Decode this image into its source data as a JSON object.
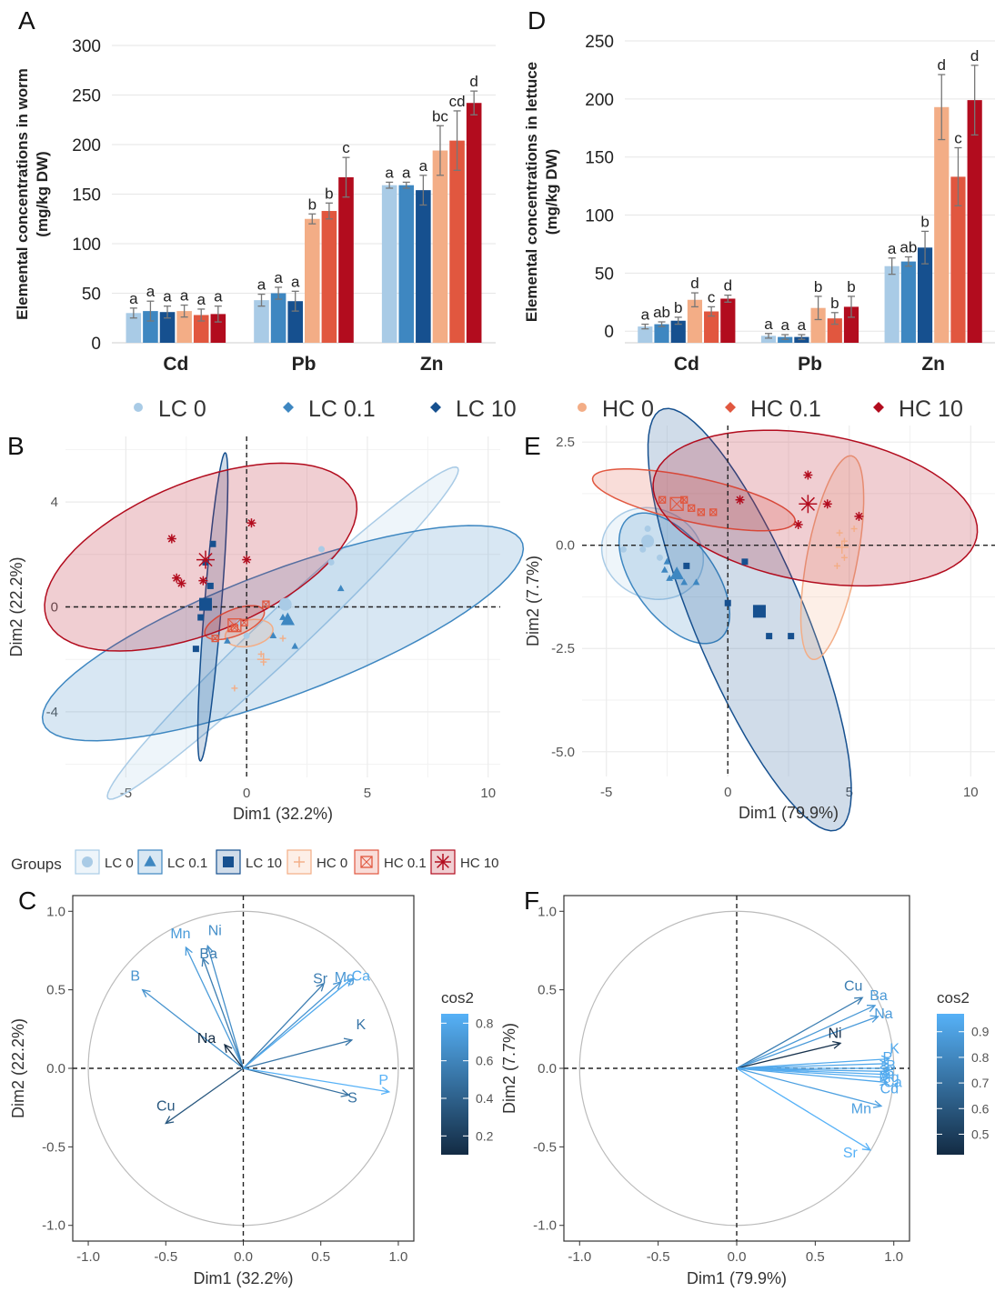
{
  "colors": {
    "LC 0": "#a9cbe6",
    "LC 0.1": "#3e87c1",
    "LC 10": "#16508f",
    "HC 0": "#f3ad86",
    "HC 0.1": "#e1573f",
    "HC 10": "#b20c1e",
    "grid": "#ebebeb",
    "circle": "#bbbbbb"
  },
  "panels": {
    "A": {
      "letter": "A"
    },
    "B": {
      "letter": "B"
    },
    "C": {
      "letter": "C"
    },
    "D": {
      "letter": "D"
    },
    "E": {
      "letter": "E"
    },
    "F": {
      "letter": "F"
    }
  },
  "top_legend": [
    {
      "label": "LC 0",
      "marker": "circle"
    },
    {
      "label": "LC 0.1",
      "marker": "diamond"
    },
    {
      "label": "LC 10",
      "marker": "diamond"
    },
    {
      "label": "HC 0",
      "marker": "circle"
    },
    {
      "label": "HC 0.1",
      "marker": "diamond"
    },
    {
      "label": "HC 10",
      "marker": "diamond"
    }
  ],
  "groups_legend": {
    "title": "Groups",
    "items": [
      {
        "label": "LC 0",
        "marker": "circle"
      },
      {
        "label": "LC 0.1",
        "marker": "triangle"
      },
      {
        "label": "LC 10",
        "marker": "square"
      },
      {
        "label": "HC 0",
        "marker": "plus"
      },
      {
        "label": "HC 0.1",
        "marker": "boxx"
      },
      {
        "label": "HC 10",
        "marker": "star"
      }
    ]
  },
  "chart_data": [
    {
      "panel": "A",
      "type": "bar",
      "ylabel_line1": "Elemental concentrations in worm",
      "ylabel_line2": "(mg/kg DW)",
      "ylim": [
        0,
        300
      ],
      "yticks": [
        0,
        50,
        100,
        150,
        200,
        250,
        300
      ],
      "categories": [
        "Cd",
        "Pb",
        "Zn"
      ],
      "groups": [
        "LC 0",
        "LC 0.1",
        "LC 10",
        "HC 0",
        "HC 0.1",
        "HC 10"
      ],
      "values": [
        [
          30,
          32,
          31,
          32,
          28,
          29
        ],
        [
          43,
          50,
          42,
          125,
          133,
          167
        ],
        [
          159,
          159,
          154,
          194,
          204,
          242
        ]
      ],
      "errors": [
        [
          5,
          10,
          6,
          6,
          6,
          8
        ],
        [
          6,
          6,
          10,
          5,
          8,
          20
        ],
        [
          3,
          3,
          15,
          25,
          30,
          12
        ]
      ],
      "letters": [
        [
          "a",
          "a",
          "a",
          "a",
          "a",
          "a"
        ],
        [
          "a",
          "a",
          "a",
          "b",
          "b",
          "c"
        ],
        [
          "a",
          "a",
          "a",
          "bc",
          "cd",
          "d"
        ]
      ]
    },
    {
      "panel": "D",
      "type": "bar",
      "ylabel_line1": "Elemental concentrations in lettuce",
      "ylabel_line2": "(mg/kg DW)",
      "ylim": [
        -10,
        250
      ],
      "yticks": [
        0,
        50,
        100,
        150,
        200,
        250
      ],
      "categories": [
        "Cd",
        "Pb",
        "Zn"
      ],
      "groups": [
        "LC 0",
        "LC 0.1",
        "LC 10",
        "HC 0",
        "HC 0.1",
        "HC 10"
      ],
      "values": [
        [
          4,
          6,
          9,
          27,
          17,
          28
        ],
        [
          -4,
          -5,
          -5,
          20,
          11,
          21
        ],
        [
          56,
          60,
          72,
          193,
          133,
          199
        ]
      ],
      "errors": [
        [
          2,
          2,
          3,
          6,
          4,
          3
        ],
        [
          2,
          2,
          2,
          10,
          5,
          9
        ],
        [
          7,
          4,
          14,
          28,
          25,
          30
        ]
      ],
      "letters": [
        [
          "a",
          "ab",
          "b",
          "d",
          "c",
          "d"
        ],
        [
          "a",
          "a",
          "a",
          "b",
          "b",
          "b"
        ],
        [
          "a",
          "ab",
          "b",
          "d",
          "c",
          "d"
        ]
      ]
    },
    {
      "panel": "B",
      "type": "scatter",
      "xlabel": "Dim1 (32.2%)",
      "ylabel": "Dim2 (22.2%)",
      "xlim": [
        -7.5,
        10.5
      ],
      "ylim": [
        -6.5,
        6.5
      ],
      "xticks": [
        -5,
        0,
        5,
        10
      ],
      "yticks": [
        -4,
        0,
        4
      ],
      "ellipses": [
        {
          "group": "LC 0",
          "cx": 1.5,
          "cy": -1.0,
          "rx": 9.6,
          "ry": 0.9,
          "angle": 41
        },
        {
          "group": "LC 0.1",
          "cx": 1.5,
          "cy": -1.0,
          "rx": 10.5,
          "ry": 2.4,
          "angle": 19
        },
        {
          "group": "LC 10",
          "cx": -1.4,
          "cy": 0.0,
          "rx": 5.9,
          "ry": 0.35,
          "angle": 85
        },
        {
          "group": "HC 0",
          "cx": 0.1,
          "cy": -1.0,
          "rx": 1.0,
          "ry": 0.5,
          "angle": 10
        },
        {
          "group": "HC 0.1",
          "cx": -0.5,
          "cy": -0.6,
          "rx": 1.3,
          "ry": 0.5,
          "angle": 20
        },
        {
          "group": "HC 10",
          "cx": -1.9,
          "cy": 1.9,
          "rx": 6.8,
          "ry": 2.9,
          "angle": 20
        }
      ],
      "points": [
        {
          "group": "LC 0",
          "marker": "circle",
          "pts": [
            [
              3.1,
              2.2
            ],
            [
              3.5,
              1.7
            ],
            [
              -0.3,
              -0.6
            ],
            [
              0.0,
              -1.1
            ],
            [
              1.5,
              0.1
            ]
          ]
        },
        {
          "group": "LC 0.1",
          "marker": "triangle",
          "pts": [
            [
              3.9,
              0.7
            ],
            [
              2.0,
              -1.5
            ],
            [
              -0.8,
              -1.3
            ],
            [
              1.1,
              -1.1
            ],
            [
              1.5,
              -0.4
            ]
          ]
        },
        {
          "group": "LC 10",
          "marker": "square",
          "pts": [
            [
              -1.4,
              2.4
            ],
            [
              -1.7,
              1.7
            ],
            [
              -1.5,
              0.8
            ],
            [
              -1.9,
              -0.4
            ],
            [
              -2.1,
              -1.6
            ]
          ]
        },
        {
          "group": "HC 0",
          "marker": "plus",
          "pts": [
            [
              1.5,
              -1.2
            ],
            [
              0.7,
              -2.1
            ],
            [
              -0.5,
              -3.1
            ],
            [
              0.6,
              -1.8
            ]
          ]
        },
        {
          "group": "HC 0.1",
          "marker": "boxx",
          "pts": [
            [
              0.8,
              0.1
            ],
            [
              -0.1,
              -0.6
            ],
            [
              -1.3,
              -1.2
            ],
            [
              -0.5,
              -0.8
            ]
          ]
        },
        {
          "group": "HC 10",
          "marker": "star",
          "pts": [
            [
              -3.1,
              2.6
            ],
            [
              -2.9,
              1.1
            ],
            [
              -2.7,
              0.9
            ],
            [
              0.2,
              3.2
            ],
            [
              0.0,
              1.8
            ],
            [
              -1.8,
              1.0
            ]
          ]
        }
      ],
      "centroids": [
        {
          "group": "LC 0",
          "marker": "circle",
          "pt": [
            1.6,
            0.1
          ]
        },
        {
          "group": "LC 0.1",
          "marker": "triangle",
          "pt": [
            1.7,
            -0.5
          ]
        },
        {
          "group": "LC 10",
          "marker": "square",
          "pt": [
            -1.7,
            0.1
          ]
        },
        {
          "group": "HC 0",
          "marker": "plus",
          "pt": [
            0.7,
            -2.0
          ]
        },
        {
          "group": "HC 0.1",
          "marker": "boxx",
          "pt": [
            -0.5,
            -0.7
          ]
        },
        {
          "group": "HC 10",
          "marker": "star",
          "pt": [
            -1.7,
            1.8
          ]
        }
      ]
    },
    {
      "panel": "E",
      "type": "scatter",
      "xlabel": "Dim1 (79.9%)",
      "ylabel": "Dim2 (7.7%)",
      "xlim": [
        -6,
        11
      ],
      "ylim": [
        -5.6,
        2.9
      ],
      "xticks": [
        -5,
        0,
        5,
        10
      ],
      "yticks": [
        -5.0,
        -2.5,
        0.0,
        2.5
      ],
      "ytick_labels": [
        "-5.0",
        "-2.5",
        "0.0",
        "2.5"
      ],
      "ellipses": [
        {
          "group": "LC 0",
          "cx": -3.1,
          "cy": -0.2,
          "rx": 2.1,
          "ry": 1.1,
          "angle": -5
        },
        {
          "group": "LC 0.1",
          "cx": -2.2,
          "cy": -0.8,
          "rx": 2.5,
          "ry": 1.2,
          "angle": -28
        },
        {
          "group": "LC 10",
          "cx": 0.9,
          "cy": -1.8,
          "rx": 6.3,
          "ry": 2.0,
          "angle": -52
        },
        {
          "group": "HC 0",
          "cx": 4.3,
          "cy": -0.3,
          "rx": 2.6,
          "ry": 1.0,
          "angle": 70
        },
        {
          "group": "HC 0.1",
          "cx": -1.4,
          "cy": 1.1,
          "rx": 4.2,
          "ry": 0.55,
          "angle": -7
        },
        {
          "group": "HC 10",
          "cx": 3.6,
          "cy": 0.9,
          "rx": 6.7,
          "ry": 1.8,
          "angle": -5
        }
      ],
      "points": [
        {
          "group": "LC 0",
          "marker": "circle",
          "pts": [
            [
              -4.3,
              -0.1
            ],
            [
              -3.3,
              0.4
            ],
            [
              -3.5,
              -0.1
            ],
            [
              -2.8,
              -0.3
            ],
            [
              -3.3,
              0.05
            ]
          ]
        },
        {
          "group": "LC 0.1",
          "marker": "triangle",
          "pts": [
            [
              -2.5,
              -0.4
            ],
            [
              -2.4,
              -0.8
            ],
            [
              -1.8,
              -0.9
            ],
            [
              -1.3,
              -0.9
            ],
            [
              -2.6,
              -0.6
            ]
          ]
        },
        {
          "group": "LC 10",
          "marker": "square",
          "pts": [
            [
              0.7,
              -0.4
            ],
            [
              0.0,
              -1.4
            ],
            [
              1.7,
              -2.2
            ],
            [
              2.6,
              -2.2
            ],
            [
              -1.7,
              -0.5
            ]
          ]
        },
        {
          "group": "HC 0",
          "marker": "plus",
          "pts": [
            [
              4.5,
              -0.5
            ],
            [
              4.8,
              -0.3
            ],
            [
              5.2,
              0.4
            ],
            [
              4.8,
              0.1
            ],
            [
              4.6,
              0.3
            ]
          ]
        },
        {
          "group": "HC 0.1",
          "marker": "boxx",
          "pts": [
            [
              -2.7,
              1.1
            ],
            [
              -1.5,
              0.9
            ],
            [
              -1.1,
              0.8
            ],
            [
              -0.6,
              0.8
            ],
            [
              -1.8,
              1.1
            ]
          ]
        },
        {
          "group": "HC 10",
          "marker": "star",
          "pts": [
            [
              3.3,
              1.7
            ],
            [
              4.1,
              1.0
            ],
            [
              2.9,
              0.5
            ],
            [
              5.4,
              0.7
            ],
            [
              0.5,
              1.1
            ]
          ]
        }
      ],
      "centroids": [
        {
          "group": "LC 0",
          "marker": "circle",
          "pt": [
            -3.3,
            0.1
          ]
        },
        {
          "group": "LC 0.1",
          "marker": "triangle",
          "pt": [
            -2.1,
            -0.7
          ]
        },
        {
          "group": "LC 10",
          "marker": "square",
          "pt": [
            1.3,
            -1.6
          ]
        },
        {
          "group": "HC 0",
          "marker": "plus",
          "pt": [
            4.7,
            -0.05
          ]
        },
        {
          "group": "HC 0.1",
          "marker": "boxx",
          "pt": [
            -2.1,
            1.0
          ]
        },
        {
          "group": "HC 10",
          "marker": "star",
          "pt": [
            3.3,
            1.0
          ]
        }
      ]
    },
    {
      "panel": "C",
      "type": "scatter",
      "subtype": "variable-correlation-circle",
      "xlabel": "Dim1 (32.2%)",
      "ylabel": "Dim2 (22.2%)",
      "xlim": [
        -1.1,
        1.1
      ],
      "ylim": [
        -1.1,
        1.1
      ],
      "xticks": [
        -1.0,
        -0.5,
        0.0,
        0.5,
        1.0
      ],
      "yticks": [
        -1.0,
        -0.5,
        0.0,
        0.5,
        1.0
      ],
      "tick_labels": [
        "-1.0",
        "-0.5",
        "0.0",
        "0.5",
        "1.0"
      ],
      "legend_title": "cos2",
      "legend_ticks": [
        "0.2",
        "0.4",
        "0.6",
        "0.8"
      ],
      "legend_range": [
        0.1,
        0.85
      ],
      "variables": [
        {
          "name": "Mn",
          "x": -0.37,
          "y": 0.77,
          "cos2": 0.73
        },
        {
          "name": "Ni",
          "x": -0.23,
          "y": 0.78,
          "cos2": 0.66
        },
        {
          "name": "Ba",
          "x": -0.26,
          "y": 0.7,
          "cos2": 0.56
        },
        {
          "name": "B",
          "x": -0.65,
          "y": 0.5,
          "cos2": 0.68
        },
        {
          "name": "Na",
          "x": -0.12,
          "y": 0.15,
          "cos2": 0.04
        },
        {
          "name": "Cu",
          "x": -0.5,
          "y": -0.35,
          "cos2": 0.35
        },
        {
          "name": "Sr",
          "x": 0.52,
          "y": 0.54,
          "cos2": 0.56
        },
        {
          "name": "Mg",
          "x": 0.63,
          "y": 0.55,
          "cos2": 0.7
        },
        {
          "name": "Ca",
          "x": 0.7,
          "y": 0.57,
          "cos2": 0.81
        },
        {
          "name": "K",
          "x": 0.7,
          "y": 0.18,
          "cos2": 0.52
        },
        {
          "name": "S",
          "x": 0.68,
          "y": -0.17,
          "cos2": 0.49
        },
        {
          "name": "P",
          "x": 0.94,
          "y": -0.15,
          "cos2": 0.85
        }
      ]
    },
    {
      "panel": "F",
      "type": "scatter",
      "subtype": "variable-correlation-circle",
      "xlabel": "Dim1 (79.9%)",
      "ylabel": "Dim2 (7.7%)",
      "xlim": [
        -1.1,
        1.1
      ],
      "ylim": [
        -1.1,
        1.1
      ],
      "xticks": [
        -1.0,
        -0.5,
        0.0,
        0.5,
        1.0
      ],
      "yticks": [
        -1.0,
        -0.5,
        0.0,
        0.5,
        1.0
      ],
      "tick_labels": [
        "-1.0",
        "-0.5",
        "0.0",
        "0.5",
        "1.0"
      ],
      "legend_title": "cos2",
      "legend_ticks": [
        "0.5",
        "0.6",
        "0.7",
        "0.8",
        "0.9"
      ],
      "legend_range": [
        0.42,
        0.97
      ],
      "variables": [
        {
          "name": "Cu",
          "x": 0.8,
          "y": 0.45,
          "cos2": 0.76
        },
        {
          "name": "Ba",
          "x": 0.88,
          "y": 0.4,
          "cos2": 0.87
        },
        {
          "name": "Na",
          "x": 0.9,
          "y": 0.33,
          "cos2": 0.88
        },
        {
          "name": "Ni",
          "x": 0.66,
          "y": 0.16,
          "cos2": 0.45
        },
        {
          "name": "K",
          "x": 0.97,
          "y": 0.06,
          "cos2": 0.94
        },
        {
          "name": "P",
          "x": 0.96,
          "y": 0.03,
          "cos2": 0.93
        },
        {
          "name": "B",
          "x": 0.97,
          "y": 0.0,
          "cos2": 0.94
        },
        {
          "name": "S",
          "x": 0.96,
          "y": -0.02,
          "cos2": 0.93
        },
        {
          "name": "Mg",
          "x": 0.97,
          "y": -0.04,
          "cos2": 0.95
        },
        {
          "name": "Ca",
          "x": 0.97,
          "y": -0.06,
          "cos2": 0.95
        },
        {
          "name": "Cd",
          "x": 0.96,
          "y": -0.09,
          "cos2": 0.93
        },
        {
          "name": "Mn",
          "x": 0.92,
          "y": -0.24,
          "cos2": 0.9
        },
        {
          "name": "Sr",
          "x": 0.85,
          "y": -0.52,
          "cos2": 0.97
        }
      ]
    }
  ]
}
